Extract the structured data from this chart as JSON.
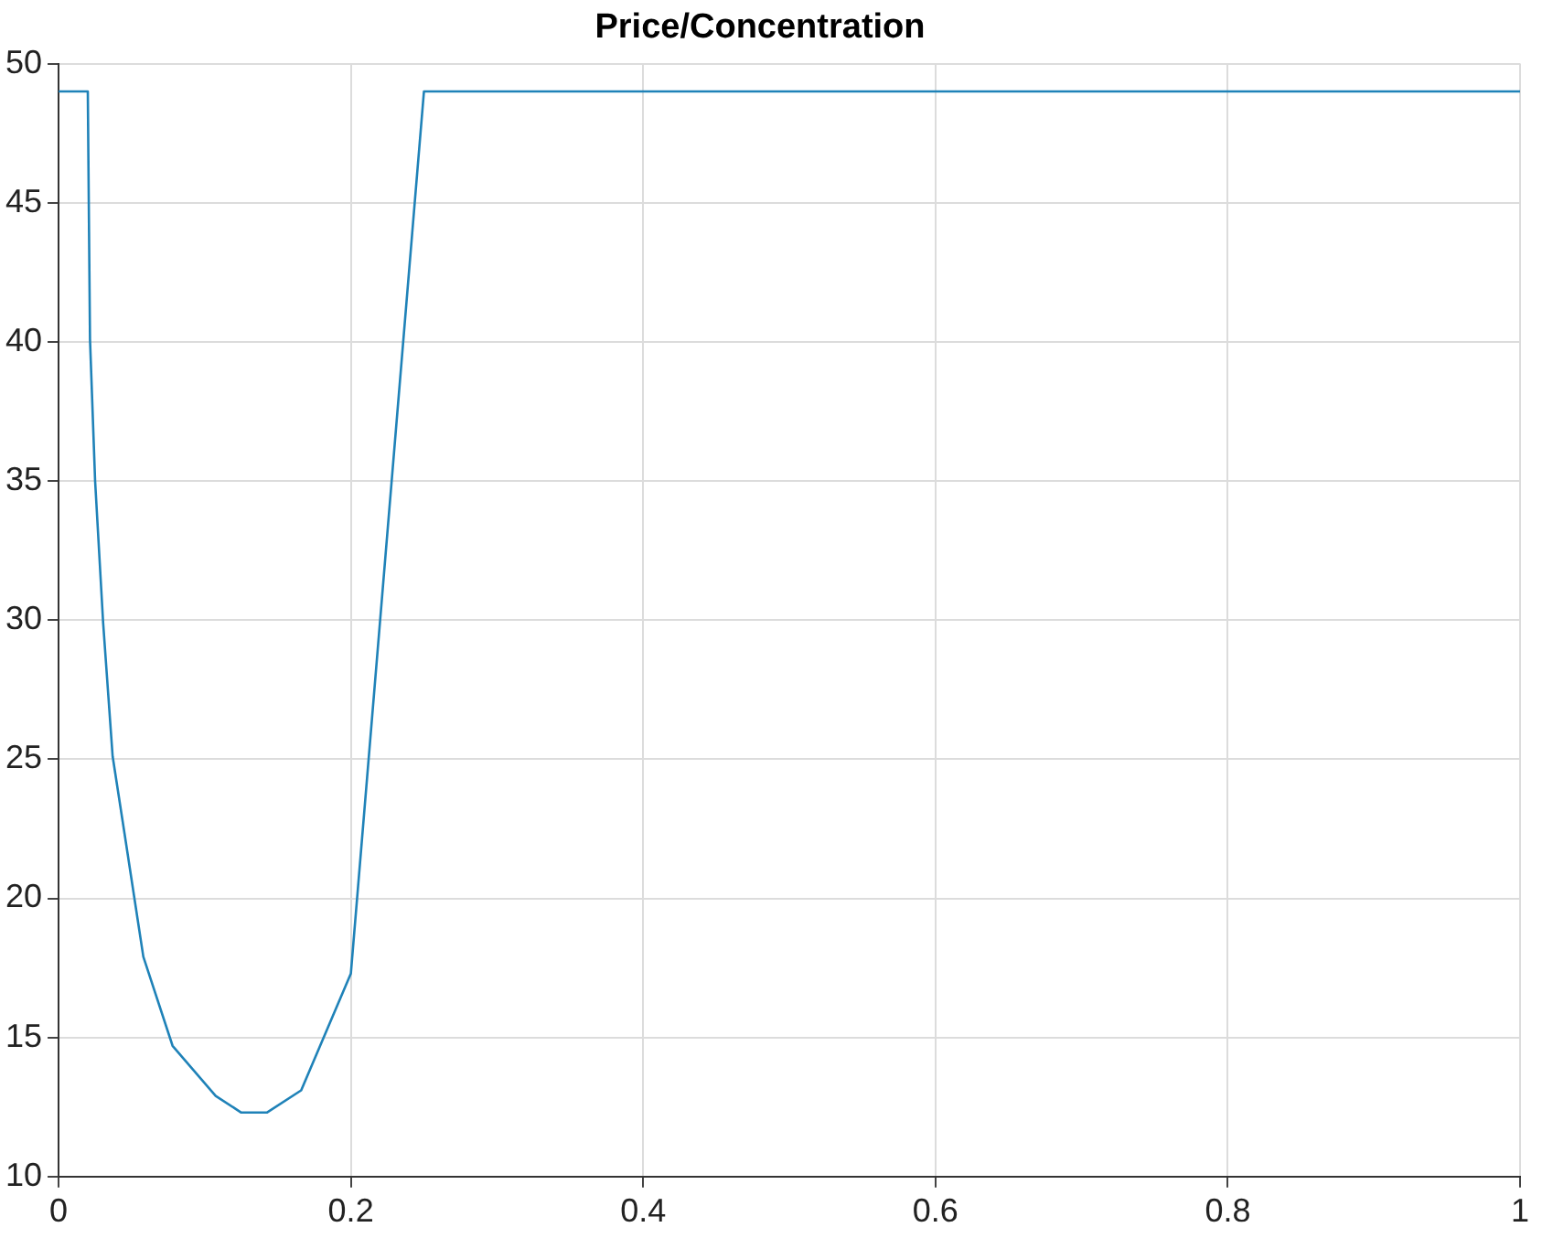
{
  "chart_data": {
    "type": "line",
    "title": "Price/Concentration",
    "series": [
      {
        "color": "#1f82b8",
        "x": [
          0,
          0.02,
          0.0215,
          0.025,
          0.0305,
          0.037,
          0.0455,
          0.058,
          0.078,
          0.1075,
          0.125,
          0.1425,
          0.166,
          0.2,
          0.25,
          1
        ],
        "values": [
          49,
          49,
          40.1,
          35,
          29.9,
          25.1,
          22.2,
          17.9,
          14.7,
          12.9,
          12.3,
          12.3,
          13.1,
          17.3,
          49,
          49
        ]
      }
    ],
    "xlim": [
      0,
      1
    ],
    "xticks": [
      0,
      0.2,
      0.4,
      0.6,
      0.8,
      1
    ],
    "ylim": [
      10,
      50
    ],
    "yticks": [
      10,
      15,
      20,
      25,
      30,
      35,
      40,
      45,
      50
    ],
    "grid": true,
    "marker": "none",
    "line_style": "solid"
  }
}
